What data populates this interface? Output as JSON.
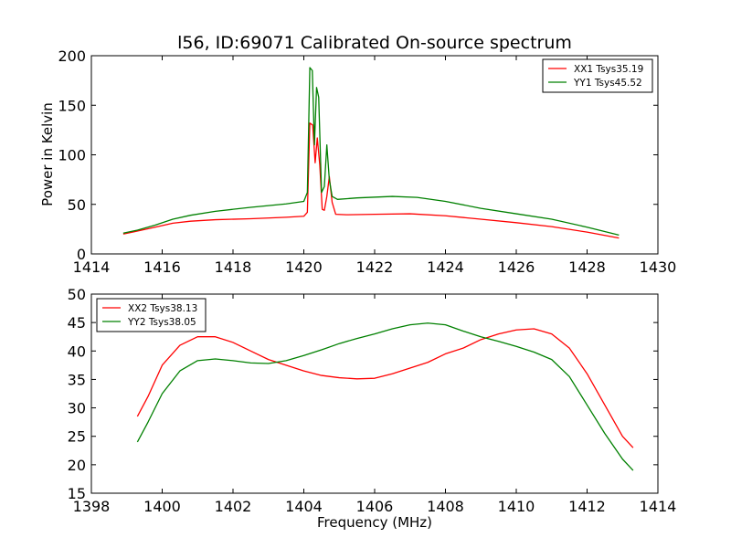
{
  "chart_data": [
    {
      "type": "line",
      "title": "l56, ID:69071 Calibrated On-source spectrum",
      "xlabel": "",
      "ylabel": "Power in Kelvin",
      "xlim": [
        1414,
        1430
      ],
      "ylim": [
        0,
        200
      ],
      "xticks": [
        1414,
        1416,
        1418,
        1420,
        1422,
        1424,
        1426,
        1428,
        1430
      ],
      "yticks": [
        0,
        50,
        100,
        150,
        200
      ],
      "legend": "top-right",
      "grid": false,
      "series": [
        {
          "name": "XX1 Tsys35.19",
          "color": "#ff0000",
          "x": [
            1414.9,
            1415.3,
            1415.8,
            1416.3,
            1416.8,
            1417.5,
            1418.5,
            1419.5,
            1420.0,
            1420.1,
            1420.17,
            1420.25,
            1420.32,
            1420.38,
            1420.45,
            1420.52,
            1420.58,
            1420.65,
            1420.72,
            1420.8,
            1420.9,
            1421.2,
            1422.0,
            1423.0,
            1424.0,
            1425.0,
            1426.0,
            1427.0,
            1428.0,
            1428.9
          ],
          "y": [
            20,
            23,
            27,
            31,
            33,
            34.5,
            35.5,
            37,
            38,
            42,
            132,
            130,
            92,
            117,
            90,
            45,
            44,
            58,
            78,
            52,
            40,
            39.5,
            40,
            40.5,
            38.5,
            35,
            31.5,
            27.5,
            22,
            16
          ]
        },
        {
          "name": "YY1 Tsys45.52",
          "color": "#008000",
          "x": [
            1414.9,
            1415.3,
            1415.8,
            1416.3,
            1416.8,
            1417.5,
            1418.5,
            1419.5,
            1420.0,
            1420.1,
            1420.17,
            1420.24,
            1420.3,
            1420.36,
            1420.42,
            1420.5,
            1420.58,
            1420.65,
            1420.72,
            1420.8,
            1420.95,
            1421.5,
            1422.5,
            1423.2,
            1424.0,
            1425.0,
            1426.0,
            1427.0,
            1428.0,
            1428.9
          ],
          "y": [
            21,
            24,
            29,
            35,
            39,
            43,
            47,
            50.5,
            53,
            62,
            188,
            185,
            110,
            168,
            158,
            62,
            68,
            110,
            75,
            58,
            55,
            56.5,
            58,
            57,
            53,
            46,
            40.5,
            35,
            27,
            19
          ]
        }
      ]
    },
    {
      "type": "line",
      "title": "",
      "xlabel": "Frequency (MHz)",
      "ylabel": "",
      "xlim": [
        1398,
        1414
      ],
      "ylim": [
        15,
        50
      ],
      "xticks": [
        1398,
        1400,
        1402,
        1404,
        1406,
        1408,
        1410,
        1412,
        1414
      ],
      "yticks": [
        15,
        20,
        25,
        30,
        35,
        40,
        45,
        50
      ],
      "legend": "top-left",
      "grid": false,
      "series": [
        {
          "name": "XX2 Tsys38.13",
          "color": "#ff0000",
          "x": [
            1399.3,
            1399.6,
            1400.0,
            1400.5,
            1401.0,
            1401.5,
            1402.0,
            1402.5,
            1403.0,
            1403.5,
            1404.0,
            1404.5,
            1405.0,
            1405.5,
            1406.0,
            1406.5,
            1407.0,
            1407.5,
            1408.0,
            1408.5,
            1409.0,
            1409.5,
            1410.0,
            1410.5,
            1411.0,
            1411.5,
            1412.0,
            1412.5,
            1413.0,
            1413.3
          ],
          "y": [
            28.5,
            32,
            37.5,
            41,
            42.5,
            42.5,
            41.5,
            40,
            38.5,
            37.5,
            36.5,
            35.7,
            35.3,
            35.1,
            35.2,
            36,
            37,
            38,
            39.5,
            40.5,
            42,
            43,
            43.7,
            43.9,
            43,
            40.5,
            36,
            30.5,
            25,
            23
          ]
        },
        {
          "name": "YY2 Tsys38.05",
          "color": "#008000",
          "x": [
            1399.3,
            1399.6,
            1400.0,
            1400.5,
            1401.0,
            1401.5,
            1402.0,
            1402.5,
            1403.0,
            1403.5,
            1404.0,
            1404.5,
            1405.0,
            1405.5,
            1406.0,
            1406.5,
            1407.0,
            1407.5,
            1408.0,
            1408.5,
            1409.0,
            1409.5,
            1410.0,
            1410.5,
            1411.0,
            1411.5,
            1412.0,
            1412.5,
            1413.0,
            1413.3
          ],
          "y": [
            24,
            27.5,
            32.5,
            36.5,
            38.3,
            38.6,
            38.3,
            37.9,
            37.8,
            38.3,
            39.2,
            40.2,
            41.3,
            42.2,
            43,
            43.9,
            44.6,
            44.9,
            44.6,
            43.5,
            42.5,
            41.7,
            40.8,
            39.8,
            38.5,
            35.5,
            30.5,
            25.5,
            21,
            19
          ]
        }
      ]
    }
  ]
}
